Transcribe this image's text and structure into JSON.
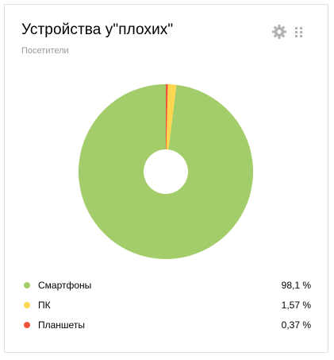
{
  "widget": {
    "title": "Устройства у\"плохих\"",
    "subtitle": "Посетители"
  },
  "icons": {
    "settings": "gear-icon",
    "drag": "drag-handle-icon"
  },
  "chart_data": {
    "type": "pie",
    "title": "",
    "donut": true,
    "series": [
      {
        "name": "Смартфоны",
        "value": 98.1,
        "display": "98,1 %",
        "color": "#a3cd6a"
      },
      {
        "name": "ПК",
        "value": 1.57,
        "display": "1,57 %",
        "color": "#ffd74f"
      },
      {
        "name": "Планшеты",
        "value": 0.37,
        "display": "0,37 %",
        "color": "#f2533b"
      }
    ]
  }
}
